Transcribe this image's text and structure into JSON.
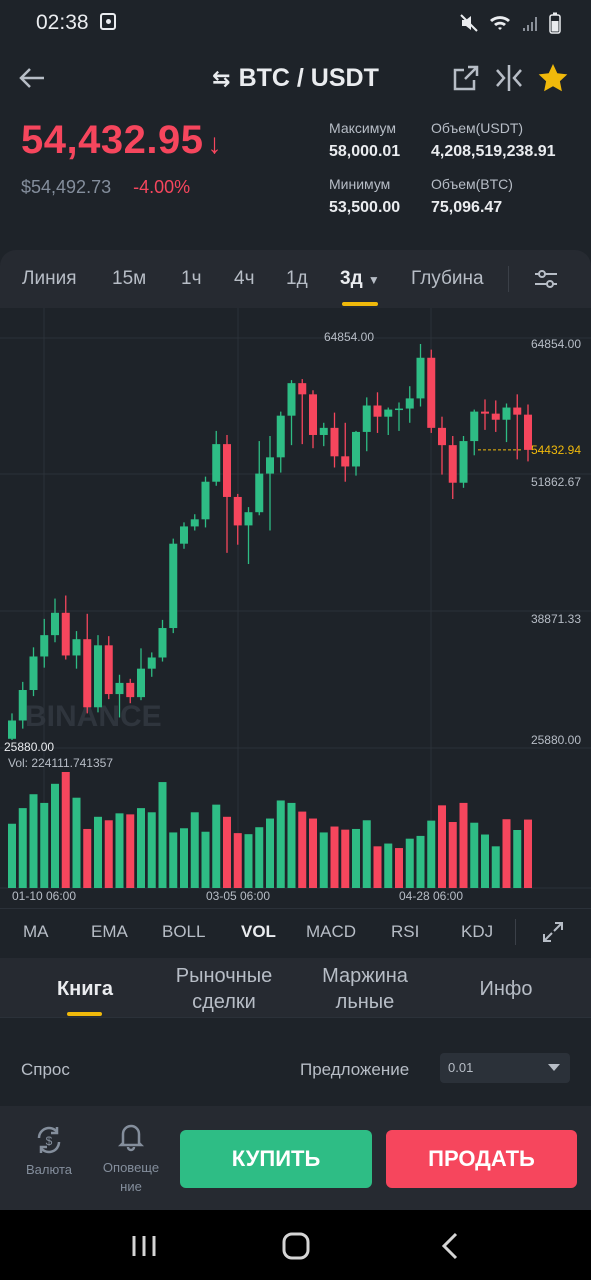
{
  "status_bar": {
    "time": "02:38"
  },
  "header": {
    "pair": "BTC / USDT"
  },
  "price": {
    "last": "54,432.95",
    "usd": "$54,492.73",
    "change": "-4.00%"
  },
  "stats": {
    "high_label": "Максимум",
    "high_value": "58,000.01",
    "vol_usdt_label": "Объем(USDT)",
    "vol_usdt_value": "4,208,519,238.91",
    "low_label": "Минимум",
    "low_value": "53,500.00",
    "vol_btc_label": "Объем(BTC)",
    "vol_btc_value": "75,096.47"
  },
  "timeframes": [
    "Линия",
    "15м",
    "1ч",
    "4ч",
    "1д",
    "3д",
    "Глубина"
  ],
  "active_timeframe": "3д",
  "chart": {
    "high_marker": "64854.00",
    "low_marker": "25880.00",
    "y_labels": [
      "64854.00",
      "51862.67",
      "38871.33",
      "25880.00"
    ],
    "current_price_label": "54432.94",
    "vol_label": "Vol: 224111.741357",
    "x_labels": [
      "01-10 06:00",
      "03-05 06:00",
      "04-28 06:00"
    ],
    "watermark": "BINANCE",
    "colors": {
      "up": "#2ebd85",
      "down": "#f6465d",
      "accent": "#f0b90b"
    }
  },
  "chart_data": {
    "type": "candlestick",
    "ylim": [
      25880.0,
      64854.0
    ],
    "x_tick_labels": [
      "01-10 06:00",
      "03-05 06:00",
      "04-28 06:00"
    ],
    "candles": [
      {
        "o": 26000,
        "h": 28500,
        "l": 25880,
        "c": 27800
      },
      {
        "o": 27800,
        "h": 31600,
        "l": 27000,
        "c": 30800
      },
      {
        "o": 30800,
        "h": 35000,
        "l": 30200,
        "c": 34100
      },
      {
        "o": 34100,
        "h": 37800,
        "l": 33000,
        "c": 36200
      },
      {
        "o": 36200,
        "h": 39800,
        "l": 35500,
        "c": 38400
      },
      {
        "o": 38400,
        "h": 40100,
        "l": 33800,
        "c": 34200
      },
      {
        "o": 34200,
        "h": 36600,
        "l": 32900,
        "c": 35800
      },
      {
        "o": 35800,
        "h": 38300,
        "l": 28500,
        "c": 29100
      },
      {
        "o": 29100,
        "h": 36200,
        "l": 28600,
        "c": 35200
      },
      {
        "o": 35200,
        "h": 36100,
        "l": 29900,
        "c": 30400
      },
      {
        "o": 30400,
        "h": 32300,
        "l": 28100,
        "c": 31500
      },
      {
        "o": 31500,
        "h": 31900,
        "l": 29500,
        "c": 30100
      },
      {
        "o": 30100,
        "h": 34900,
        "l": 29800,
        "c": 32900
      },
      {
        "o": 32900,
        "h": 34500,
        "l": 32100,
        "c": 34000
      },
      {
        "o": 34000,
        "h": 37700,
        "l": 33600,
        "c": 36900
      },
      {
        "o": 36900,
        "h": 45700,
        "l": 36400,
        "c": 45200
      },
      {
        "o": 45200,
        "h": 47300,
        "l": 44700,
        "c": 46900
      },
      {
        "o": 46900,
        "h": 48100,
        "l": 46500,
        "c": 47600
      },
      {
        "o": 47600,
        "h": 51800,
        "l": 46800,
        "c": 51300
      },
      {
        "o": 51300,
        "h": 56300,
        "l": 50900,
        "c": 55000
      },
      {
        "o": 55000,
        "h": 55900,
        "l": 44300,
        "c": 49800
      },
      {
        "o": 49800,
        "h": 50100,
        "l": 45100,
        "c": 47000
      },
      {
        "o": 47000,
        "h": 48800,
        "l": 43200,
        "c": 48300
      },
      {
        "o": 48300,
        "h": 55300,
        "l": 48000,
        "c": 52100
      },
      {
        "o": 52100,
        "h": 55800,
        "l": 46500,
        "c": 53700
      },
      {
        "o": 53700,
        "h": 58200,
        "l": 52200,
        "c": 57800
      },
      {
        "o": 57800,
        "h": 61300,
        "l": 54900,
        "c": 61000
      },
      {
        "o": 61000,
        "h": 61400,
        "l": 55000,
        "c": 59900
      },
      {
        "o": 59900,
        "h": 60300,
        "l": 54600,
        "c": 55900
      },
      {
        "o": 55900,
        "h": 57100,
        "l": 54800,
        "c": 56600
      },
      {
        "o": 56600,
        "h": 58100,
        "l": 52700,
        "c": 53800
      },
      {
        "o": 53800,
        "h": 57100,
        "l": 51300,
        "c": 52800
      },
      {
        "o": 52800,
        "h": 56300,
        "l": 51900,
        "c": 56200
      },
      {
        "o": 56200,
        "h": 59600,
        "l": 54300,
        "c": 58800
      },
      {
        "o": 58800,
        "h": 60100,
        "l": 56100,
        "c": 57700
      },
      {
        "o": 57700,
        "h": 58600,
        "l": 55900,
        "c": 58400
      },
      {
        "o": 58400,
        "h": 59100,
        "l": 56300,
        "c": 58500
      },
      {
        "o": 58500,
        "h": 60700,
        "l": 57100,
        "c": 59500
      },
      {
        "o": 59500,
        "h": 64854,
        "l": 58700,
        "c": 63500
      },
      {
        "o": 63500,
        "h": 64300,
        "l": 56100,
        "c": 56600
      },
      {
        "o": 56600,
        "h": 57700,
        "l": 52000,
        "c": 54900
      },
      {
        "o": 54900,
        "h": 55800,
        "l": 49600,
        "c": 51200
      },
      {
        "o": 51200,
        "h": 55800,
        "l": 50700,
        "c": 55300
      },
      {
        "o": 55300,
        "h": 58400,
        "l": 53900,
        "c": 58200
      },
      {
        "o": 58200,
        "h": 59400,
        "l": 56400,
        "c": 58000
      },
      {
        "o": 58000,
        "h": 59300,
        "l": 56200,
        "c": 57400
      },
      {
        "o": 57400,
        "h": 59000,
        "l": 55200,
        "c": 58600
      },
      {
        "o": 58600,
        "h": 59900,
        "l": 53500,
        "c": 57900
      },
      {
        "o": 57900,
        "h": 58900,
        "l": 53300,
        "c": 54432.94
      }
    ],
    "volumes": [
      {
        "v": 185000,
        "up": true
      },
      {
        "v": 230000,
        "up": true
      },
      {
        "v": 270000,
        "up": true
      },
      {
        "v": 245000,
        "up": true
      },
      {
        "v": 300000,
        "up": true
      },
      {
        "v": 334000,
        "up": false
      },
      {
        "v": 260000,
        "up": true
      },
      {
        "v": 170000,
        "up": false
      },
      {
        "v": 205000,
        "up": true
      },
      {
        "v": 195000,
        "up": false
      },
      {
        "v": 215000,
        "up": true
      },
      {
        "v": 212000,
        "up": false
      },
      {
        "v": 230000,
        "up": true
      },
      {
        "v": 218000,
        "up": true
      },
      {
        "v": 305000,
        "up": true
      },
      {
        "v": 160000,
        "up": true
      },
      {
        "v": 172000,
        "up": true
      },
      {
        "v": 218000,
        "up": true
      },
      {
        "v": 162000,
        "up": true
      },
      {
        "v": 240000,
        "up": true
      },
      {
        "v": 205000,
        "up": false
      },
      {
        "v": 158000,
        "up": false
      },
      {
        "v": 155000,
        "up": true
      },
      {
        "v": 175000,
        "up": true
      },
      {
        "v": 200000,
        "up": true
      },
      {
        "v": 252000,
        "up": true
      },
      {
        "v": 245000,
        "up": true
      },
      {
        "v": 220000,
        "up": false
      },
      {
        "v": 200000,
        "up": false
      },
      {
        "v": 160000,
        "up": true
      },
      {
        "v": 177000,
        "up": false
      },
      {
        "v": 168000,
        "up": false
      },
      {
        "v": 170000,
        "up": true
      },
      {
        "v": 195000,
        "up": true
      },
      {
        "v": 120000,
        "up": false
      },
      {
        "v": 128000,
        "up": true
      },
      {
        "v": 115000,
        "up": false
      },
      {
        "v": 142000,
        "up": true
      },
      {
        "v": 150000,
        "up": true
      },
      {
        "v": 194000,
        "up": true
      },
      {
        "v": 238000,
        "up": false
      },
      {
        "v": 190000,
        "up": false
      },
      {
        "v": 245000,
        "up": false
      },
      {
        "v": 188000,
        "up": true
      },
      {
        "v": 154000,
        "up": true
      },
      {
        "v": 120000,
        "up": true
      },
      {
        "v": 198000,
        "up": false
      },
      {
        "v": 167000,
        "up": true
      },
      {
        "v": 197000,
        "up": false
      }
    ]
  },
  "indicators": [
    "MA",
    "EMA",
    "BOLL",
    "VOL",
    "MACD",
    "RSI",
    "KDJ"
  ],
  "active_indicator": "VOL",
  "tabs": [
    {
      "label": "Книга"
    },
    {
      "label": "Рыночные сделки"
    },
    {
      "label": "Маржинальные"
    },
    {
      "label": "Инфо"
    }
  ],
  "orderbook": {
    "bid_label": "Спрос",
    "ask_label": "Предложение",
    "precision": "0.01"
  },
  "bottom": {
    "currency_label": "Валюта",
    "alerts_label": "Оповеще ние",
    "buy_label": "КУПИТЬ",
    "sell_label": "ПРОДАТЬ"
  }
}
